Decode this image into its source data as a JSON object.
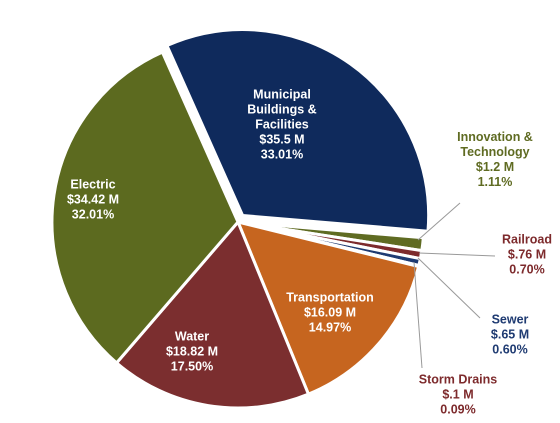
{
  "chart_data": {
    "type": "pie",
    "categories": [
      "Municipal Buildings & Facilities",
      "Innovation & Technology",
      "Railroad",
      "Sewer",
      "Storm Drains",
      "Transportation",
      "Water",
      "Electric"
    ],
    "values": [
      33.01,
      1.11,
      0.7,
      0.6,
      0.09,
      14.97,
      17.5,
      32.01
    ],
    "value_labels": [
      "33.01%",
      "1.11%",
      "0.70%",
      "0.60%",
      "0.09%",
      "14.97%",
      "17.50%",
      "32.01%"
    ],
    "amounts": [
      35.5,
      1.2,
      0.76,
      0.65,
      0.1,
      16.09,
      18.82,
      34.42
    ],
    "amount_labels": [
      "$35.5 M",
      "$1.2 M",
      "$.76 M",
      "$.65 M",
      "$.1 M",
      "$16.09 M",
      "$18.82 M",
      "$34.42 M"
    ],
    "colors": [
      "#0f2a5c",
      "#5f6b22",
      "#7d2a2c",
      "#1f3b72",
      "#8a3a2c",
      "#c6651f",
      "#7b2e2f",
      "#5c6a1f"
    ]
  }
}
